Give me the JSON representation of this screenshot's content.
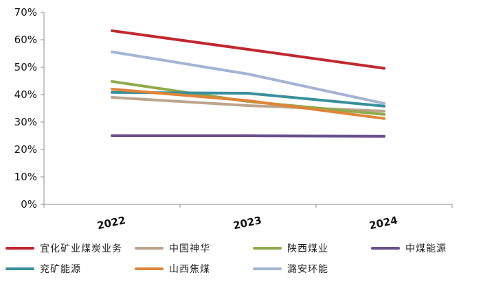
{
  "chart_data": {
    "type": "line",
    "title": "",
    "xlabel": "",
    "ylabel": "",
    "x": [
      "2022",
      "2023",
      "2024"
    ],
    "y_ticks": [
      "0%",
      "10%",
      "20%",
      "30%",
      "40%",
      "50%",
      "60%",
      "70%"
    ],
    "ylim": [
      0,
      70
    ],
    "grid": false,
    "legend_position": "bottom",
    "series": [
      {
        "name": "宜化矿业煤炭业务",
        "color": "#c0282f",
        "values": [
          63.3,
          56.5,
          49.6
        ]
      },
      {
        "name": "中国神华",
        "color": "#bba58c",
        "values": [
          39.0,
          36.0,
          34.0
        ]
      },
      {
        "name": "陕西煤业",
        "color": "#8faa4a",
        "values": [
          44.8,
          37.5,
          32.8
        ]
      },
      {
        "name": "中煤能源",
        "color": "#6b4f8c",
        "values": [
          25.0,
          25.0,
          24.8
        ]
      },
      {
        "name": "兖矿能源",
        "color": "#3a8f9e",
        "values": [
          40.8,
          40.5,
          35.8
        ]
      },
      {
        "name": "山西焦煤",
        "color": "#e0843a",
        "values": [
          42.0,
          37.8,
          31.3
        ]
      },
      {
        "name": "潞安环能",
        "color": "#a3b4d4",
        "values": [
          55.6,
          47.5,
          36.8
        ]
      }
    ]
  }
}
